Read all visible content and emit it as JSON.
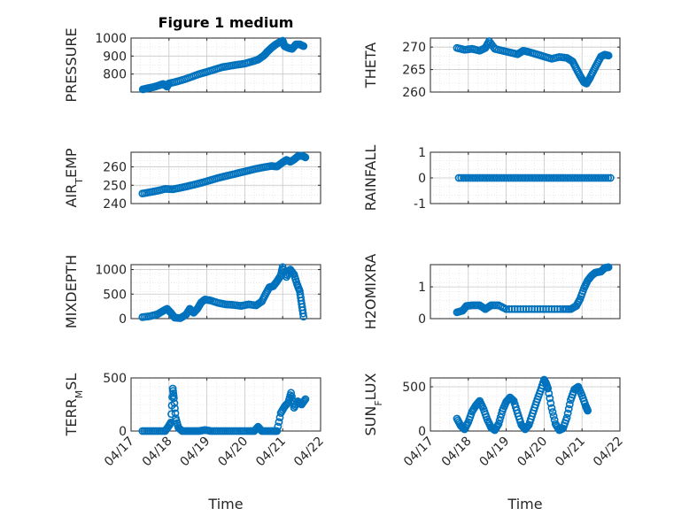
{
  "figure": {
    "title": "Figure 1 medium"
  },
  "chart_data": [
    {
      "id": "pressure",
      "type": "scatter",
      "title": "Figure 1 medium",
      "ylabel": [
        [
          "PRESSURE",
          ""
        ]
      ],
      "ylim": [
        700,
        1000
      ],
      "yticks": [
        800,
        900,
        1000
      ],
      "xlim": [
        0,
        5
      ],
      "xticks": [],
      "xlabel": "",
      "points": [
        [
          0.31,
          715
        ],
        [
          0.45,
          722
        ],
        [
          0.6,
          728
        ],
        [
          0.75,
          738
        ],
        [
          0.85,
          745
        ],
        [
          0.95,
          730
        ],
        [
          1.0,
          748
        ],
        [
          1.2,
          758
        ],
        [
          1.4,
          770
        ],
        [
          1.6,
          785
        ],
        [
          1.8,
          800
        ],
        [
          2.0,
          812
        ],
        [
          2.2,
          825
        ],
        [
          2.4,
          838
        ],
        [
          2.6,
          845
        ],
        [
          2.8,
          852
        ],
        [
          3.0,
          858
        ],
        [
          3.2,
          870
        ],
        [
          3.35,
          880
        ],
        [
          3.5,
          902
        ],
        [
          3.6,
          925
        ],
        [
          3.7,
          945
        ],
        [
          3.8,
          962
        ],
        [
          3.9,
          975
        ],
        [
          4.0,
          985
        ],
        [
          4.05,
          955
        ],
        [
          4.15,
          945
        ],
        [
          4.25,
          940
        ],
        [
          4.35,
          965
        ],
        [
          4.45,
          965
        ],
        [
          4.55,
          955
        ]
      ]
    },
    {
      "id": "theta",
      "type": "scatter",
      "ylabel": [
        [
          "THETA",
          ""
        ]
      ],
      "ylim": [
        260,
        272
      ],
      "yticks": [
        260,
        265,
        270
      ],
      "xlim": [
        0,
        5
      ],
      "xticks": [],
      "xlabel": "",
      "points": [
        [
          0.7,
          269.8
        ],
        [
          0.9,
          269.4
        ],
        [
          1.1,
          269.6
        ],
        [
          1.3,
          269.2
        ],
        [
          1.45,
          269.8
        ],
        [
          1.55,
          271.3
        ],
        [
          1.7,
          269.6
        ],
        [
          1.9,
          269.2
        ],
        [
          2.1,
          268.8
        ],
        [
          2.3,
          268.4
        ],
        [
          2.45,
          269.2
        ],
        [
          2.6,
          268.9
        ],
        [
          2.8,
          268.4
        ],
        [
          3.0,
          267.9
        ],
        [
          3.2,
          267.4
        ],
        [
          3.4,
          267.8
        ],
        [
          3.6,
          267.6
        ],
        [
          3.75,
          266.8
        ],
        [
          3.85,
          265.2
        ],
        [
          3.95,
          263.6
        ],
        [
          4.05,
          262.2
        ],
        [
          4.12,
          261.9
        ],
        [
          4.2,
          263.0
        ],
        [
          4.3,
          264.7
        ],
        [
          4.4,
          266.3
        ],
        [
          4.5,
          267.9
        ],
        [
          4.6,
          268.3
        ],
        [
          4.7,
          268.1
        ]
      ]
    },
    {
      "id": "air_temp",
      "type": "scatter",
      "ylabel": [
        [
          "AIR",
          ""
        ],
        [
          "T",
          "sub"
        ],
        [
          "EMP",
          ""
        ]
      ],
      "ylim": [
        240,
        268
      ],
      "yticks": [
        240,
        250,
        260
      ],
      "xlim": [
        0,
        5
      ],
      "xticks": [],
      "xlabel": "",
      "points": [
        [
          0.3,
          245.5
        ],
        [
          0.5,
          246.2
        ],
        [
          0.7,
          247.0
        ],
        [
          0.9,
          248.0
        ],
        [
          1.1,
          247.8
        ],
        [
          1.3,
          248.6
        ],
        [
          1.5,
          249.5
        ],
        [
          1.7,
          250.5
        ],
        [
          1.9,
          251.6
        ],
        [
          2.1,
          252.8
        ],
        [
          2.3,
          254.0
        ],
        [
          2.5,
          255.0
        ],
        [
          2.7,
          256.0
        ],
        [
          2.9,
          257.0
        ],
        [
          3.1,
          258.0
        ],
        [
          3.3,
          259.0
        ],
        [
          3.5,
          259.8
        ],
        [
          3.7,
          260.5
        ],
        [
          3.85,
          260.2
        ],
        [
          4.0,
          262.5
        ],
        [
          4.1,
          263.8
        ],
        [
          4.2,
          262.8
        ],
        [
          4.3,
          264.0
        ],
        [
          4.4,
          265.8
        ],
        [
          4.5,
          266.2
        ],
        [
          4.6,
          265.2
        ]
      ]
    },
    {
      "id": "rainfall",
      "type": "scatter",
      "ylabel": [
        [
          "RAINFALL",
          ""
        ]
      ],
      "ylim": [
        -1,
        1
      ],
      "yticks": [
        -1,
        0,
        1
      ],
      "xlim": [
        0,
        5
      ],
      "xticks": [],
      "xlabel": "",
      "points": [
        [
          0.75,
          0
        ],
        [
          1.0,
          0
        ],
        [
          1.25,
          0
        ],
        [
          1.5,
          0
        ],
        [
          1.75,
          0
        ],
        [
          2.0,
          0
        ],
        [
          2.25,
          0
        ],
        [
          2.5,
          0
        ],
        [
          2.75,
          0
        ],
        [
          3.0,
          0
        ],
        [
          3.25,
          0
        ],
        [
          3.5,
          0
        ],
        [
          3.75,
          0
        ],
        [
          4.0,
          0
        ],
        [
          4.25,
          0
        ],
        [
          4.5,
          0
        ],
        [
          4.75,
          0
        ]
      ]
    },
    {
      "id": "mixdepth",
      "type": "scatter",
      "ylabel": [
        [
          "MIXDEPTH",
          ""
        ]
      ],
      "ylim": [
        0,
        1100
      ],
      "yticks": [
        0,
        500,
        1000
      ],
      "xlim": [
        0,
        5
      ],
      "xticks": [],
      "xlabel": "",
      "points": [
        [
          0.3,
          30
        ],
        [
          0.5,
          50
        ],
        [
          0.7,
          90
        ],
        [
          0.85,
          160
        ],
        [
          0.95,
          200
        ],
        [
          1.05,
          120
        ],
        [
          1.15,
          20
        ],
        [
          1.3,
          10
        ],
        [
          1.45,
          80
        ],
        [
          1.55,
          200
        ],
        [
          1.65,
          120
        ],
        [
          1.75,
          200
        ],
        [
          1.85,
          330
        ],
        [
          1.95,
          390
        ],
        [
          2.1,
          370
        ],
        [
          2.3,
          320
        ],
        [
          2.5,
          290
        ],
        [
          2.7,
          280
        ],
        [
          2.9,
          260
        ],
        [
          3.1,
          290
        ],
        [
          3.3,
          270
        ],
        [
          3.45,
          350
        ],
        [
          3.55,
          500
        ],
        [
          3.65,
          640
        ],
        [
          3.75,
          660
        ],
        [
          3.85,
          760
        ],
        [
          3.95,
          880
        ],
        [
          4.0,
          1050
        ],
        [
          4.1,
          850
        ],
        [
          4.2,
          1000
        ],
        [
          4.3,
          900
        ],
        [
          4.38,
          700
        ],
        [
          4.45,
          560
        ],
        [
          4.5,
          300
        ],
        [
          4.55,
          40
        ]
      ]
    },
    {
      "id": "h2omixra",
      "type": "scatter",
      "ylabel": [
        [
          "H2OMIXRA",
          ""
        ]
      ],
      "ylim": [
        0,
        1.7
      ],
      "yticks": [
        0,
        1
      ],
      "xlim": [
        0,
        5
      ],
      "xticks": [],
      "xlabel": "",
      "points": [
        [
          0.7,
          0.2
        ],
        [
          0.85,
          0.25
        ],
        [
          0.95,
          0.4
        ],
        [
          1.1,
          0.42
        ],
        [
          1.3,
          0.42
        ],
        [
          1.45,
          0.3
        ],
        [
          1.6,
          0.42
        ],
        [
          1.8,
          0.42
        ],
        [
          2.0,
          0.3
        ],
        [
          2.3,
          0.3
        ],
        [
          2.6,
          0.3
        ],
        [
          2.9,
          0.3
        ],
        [
          3.2,
          0.3
        ],
        [
          3.5,
          0.3
        ],
        [
          3.7,
          0.3
        ],
        [
          3.85,
          0.4
        ],
        [
          3.95,
          0.62
        ],
        [
          4.05,
          0.95
        ],
        [
          4.15,
          1.2
        ],
        [
          4.25,
          1.35
        ],
        [
          4.35,
          1.45
        ],
        [
          4.5,
          1.48
        ],
        [
          4.6,
          1.6
        ],
        [
          4.7,
          1.62
        ]
      ]
    },
    {
      "id": "terr_msl",
      "type": "scatter",
      "ylabel": [
        [
          "TERR",
          ""
        ],
        [
          "M",
          "sub"
        ],
        [
          "SL",
          ""
        ]
      ],
      "ylim": [
        0,
        500
      ],
      "yticks": [
        0,
        500
      ],
      "xlim": [
        0,
        5
      ],
      "xticks": [
        "04/17",
        "04/18",
        "04/19",
        "04/20",
        "04/21",
        "04/22"
      ],
      "xlabel": "Time",
      "points": [
        [
          0.3,
          0
        ],
        [
          0.5,
          0
        ],
        [
          0.7,
          0
        ],
        [
          0.9,
          0
        ],
        [
          1.0,
          50
        ],
        [
          1.05,
          80
        ],
        [
          1.1,
          400
        ],
        [
          1.13,
          310
        ],
        [
          1.18,
          120
        ],
        [
          1.25,
          30
        ],
        [
          1.35,
          0
        ],
        [
          1.5,
          0
        ],
        [
          1.65,
          0
        ],
        [
          1.8,
          0
        ],
        [
          1.95,
          10
        ],
        [
          2.1,
          0
        ],
        [
          2.3,
          0
        ],
        [
          2.5,
          0
        ],
        [
          2.7,
          0
        ],
        [
          2.9,
          0
        ],
        [
          3.1,
          0
        ],
        [
          3.25,
          0
        ],
        [
          3.35,
          40
        ],
        [
          3.45,
          0
        ],
        [
          3.6,
          0
        ],
        [
          3.75,
          0
        ],
        [
          3.85,
          0
        ],
        [
          3.95,
          170
        ],
        [
          4.05,
          230
        ],
        [
          4.15,
          270
        ],
        [
          4.22,
          360
        ],
        [
          4.3,
          220
        ],
        [
          4.4,
          280
        ],
        [
          4.5,
          250
        ],
        [
          4.6,
          300
        ]
      ]
    },
    {
      "id": "sun_flux",
      "type": "scatter",
      "ylabel": [
        [
          "SUN",
          ""
        ],
        [
          "F",
          "sub"
        ],
        [
          "LUX",
          ""
        ]
      ],
      "ylim": [
        0,
        600
      ],
      "yticks": [
        0,
        500
      ],
      "xlim": [
        0,
        5
      ],
      "xticks": [
        "04/17",
        "04/18",
        "04/19",
        "04/20",
        "04/21",
        "04/22"
      ],
      "xlabel": "Time",
      "points": [
        [
          0.7,
          140
        ],
        [
          0.8,
          60
        ],
        [
          0.9,
          20
        ],
        [
          1.0,
          100
        ],
        [
          1.1,
          220
        ],
        [
          1.2,
          290
        ],
        [
          1.3,
          340
        ],
        [
          1.4,
          250
        ],
        [
          1.5,
          130
        ],
        [
          1.6,
          40
        ],
        [
          1.7,
          10
        ],
        [
          1.8,
          80
        ],
        [
          1.9,
          230
        ],
        [
          2.0,
          330
        ],
        [
          2.1,
          380
        ],
        [
          2.2,
          340
        ],
        [
          2.3,
          200
        ],
        [
          2.4,
          70
        ],
        [
          2.5,
          20
        ],
        [
          2.6,
          70
        ],
        [
          2.7,
          200
        ],
        [
          2.8,
          330
        ],
        [
          2.9,
          450
        ],
        [
          3.0,
          580
        ],
        [
          3.05,
          540
        ],
        [
          3.1,
          480
        ],
        [
          3.2,
          260
        ],
        [
          3.3,
          80
        ],
        [
          3.4,
          10
        ],
        [
          3.5,
          30
        ],
        [
          3.6,
          150
        ],
        [
          3.7,
          350
        ],
        [
          3.8,
          470
        ],
        [
          3.9,
          500
        ],
        [
          4.0,
          400
        ],
        [
          4.1,
          280
        ],
        [
          4.15,
          230
        ]
      ]
    }
  ],
  "colors": {
    "marker": "#0072BD",
    "axis": "#262626",
    "grid": "#dcdcdc",
    "panel": "#ffffff"
  }
}
